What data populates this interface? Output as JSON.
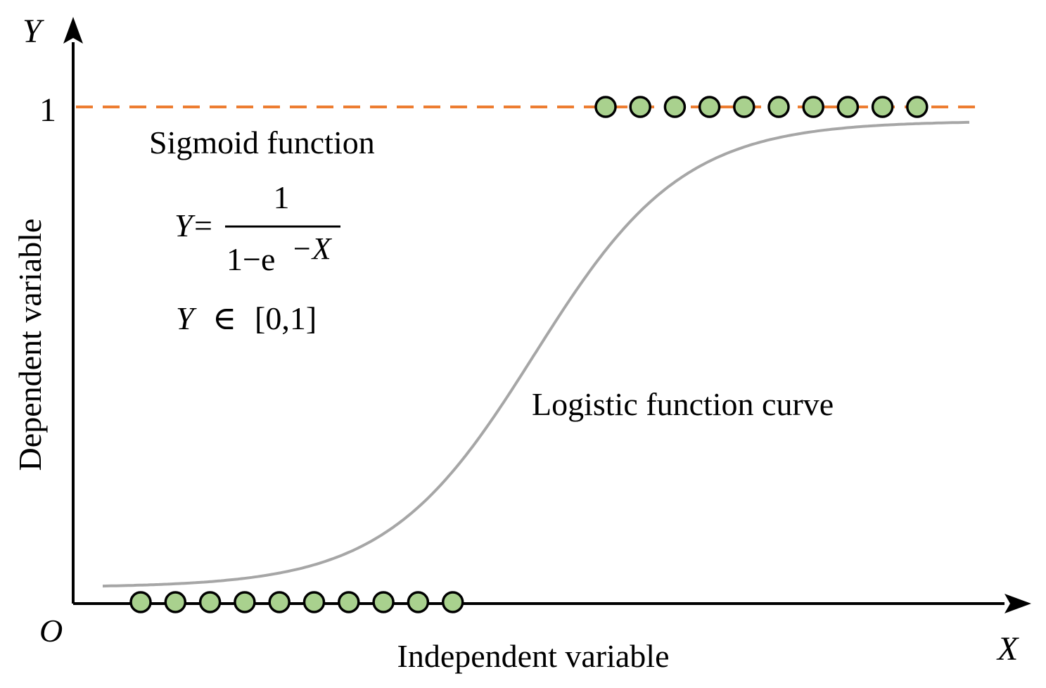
{
  "labels": {
    "y_axis_symbol": "Y",
    "x_axis_symbol": "X",
    "origin_symbol": "O",
    "one_tick": "1",
    "y_axis_title": "Dependent variable",
    "x_axis_title": "Independent variable",
    "sigmoid_title": "Sigmoid function",
    "curve_label": "Logistic function curve"
  },
  "formula": {
    "lhs": "Y",
    "equals": "=",
    "numerator": "1",
    "denominator_base": "1−e",
    "exponent": "−X",
    "range_var": "Y",
    "range_symbol": "∈",
    "range_interval": "[0,1]"
  },
  "colors": {
    "axis": "#000000",
    "curve": "#a6a6a6",
    "dashed_line": "#ed7d31",
    "point_fill": "#a9d18e",
    "point_stroke": "#000000"
  },
  "points": {
    "lower_count": 10,
    "upper_count": 10
  }
}
